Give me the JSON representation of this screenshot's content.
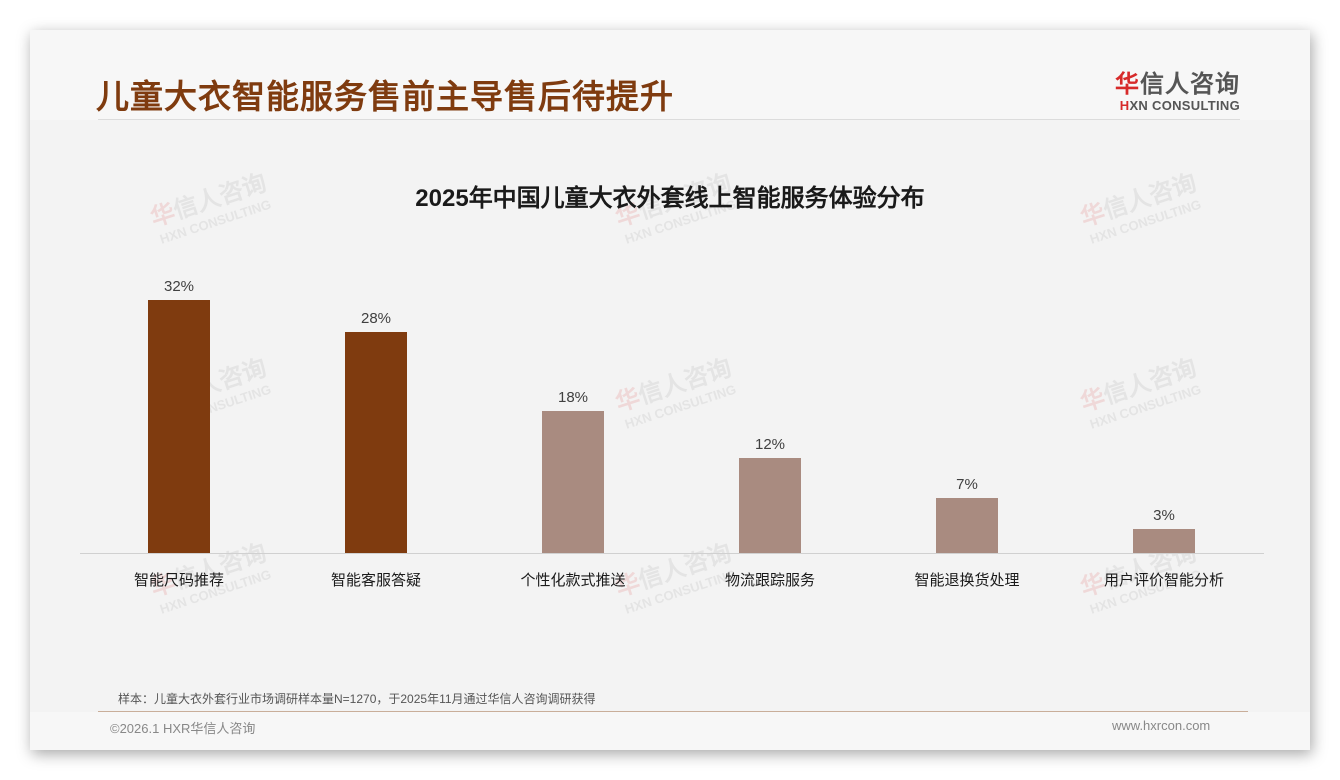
{
  "header": {
    "title": "儿童大衣智能服务售前主导售后待提升",
    "logo": {
      "cn_first": "华",
      "cn_rest": "信人咨询",
      "en_first": "H",
      "en_rest": "XN CONSULTING"
    }
  },
  "watermark": {
    "cn_first": "华",
    "cn_rest": "信人咨询",
    "en": "HXN CONSULTING"
  },
  "colors": {
    "primary_bar": "#7f3b0f",
    "secondary_bar": "#a98b80",
    "title": "#7f3b0f",
    "brand_red": "#d72a2a"
  },
  "chart_data": {
    "type": "bar",
    "title": "2025年中国儿童大衣外套线上智能服务体验分布",
    "xlabel": "",
    "ylabel": "",
    "ylim": [
      0,
      35
    ],
    "grid": false,
    "legend": null,
    "categories": [
      "智能尺码推荐",
      "智能客服答疑",
      "个性化款式推送",
      "物流跟踪服务",
      "智能退换货处理",
      "用户评价智能分析"
    ],
    "values": [
      32,
      28,
      18,
      12,
      7,
      3
    ],
    "value_labels": [
      "32%",
      "28%",
      "18%",
      "12%",
      "7%",
      "3%"
    ],
    "bar_colors": [
      "#7f3b0f",
      "#7f3b0f",
      "#a98b80",
      "#a98b80",
      "#a98b80",
      "#a98b80"
    ]
  },
  "footer": {
    "note": "样本：儿童大衣外套行业市场调研样本量N=1270，于2025年11月通过华信人咨询调研获得",
    "copyright": "©2026.1 HXR华信人咨询",
    "website": "www.hxrcon.com"
  }
}
